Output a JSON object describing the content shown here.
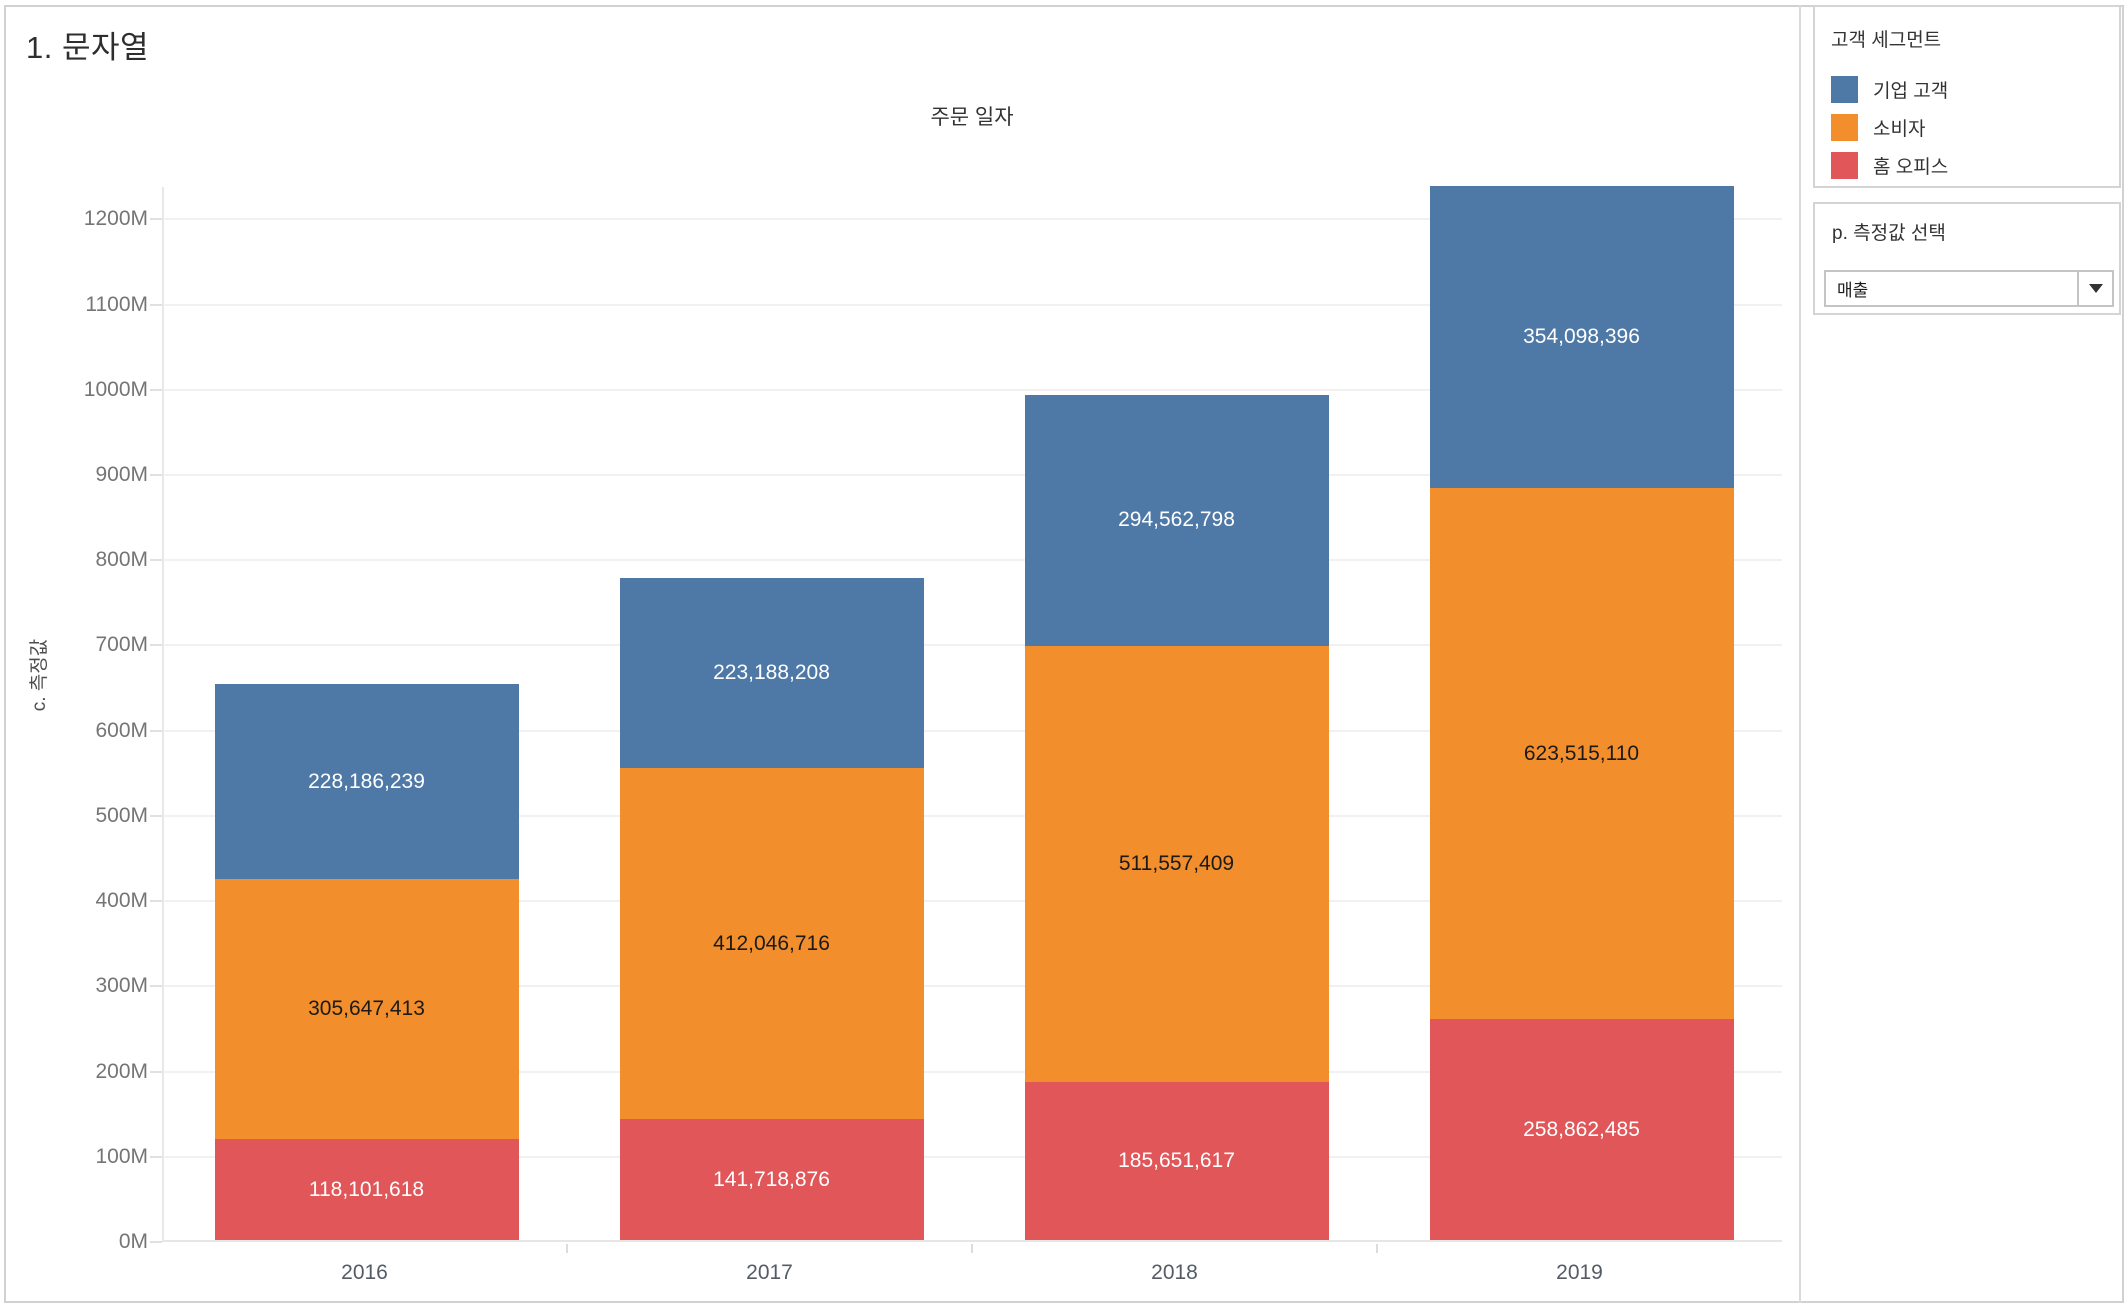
{
  "window": {
    "title": "1. 문자열"
  },
  "chart_data": {
    "type": "bar",
    "stacked": true,
    "title": "주문 일자",
    "xlabel": "",
    "ylabel": "c. 측정값",
    "categories": [
      "2016",
      "2017",
      "2018",
      "2019"
    ],
    "series": [
      {
        "name": "홈 오피스",
        "color": "#e15759",
        "label_color": "#ffffff",
        "values": [
          118101618,
          141718876,
          185651617,
          258862485
        ]
      },
      {
        "name": "소비자",
        "color": "#f28e2b",
        "label_color": "#1b1b1b",
        "values": [
          305647413,
          412046716,
          511557409,
          623515110
        ]
      },
      {
        "name": "기업 고객",
        "color": "#4e79a7",
        "label_color": "#ffffff",
        "values": [
          228186239,
          223188208,
          294562798,
          354098396
        ]
      }
    ],
    "y_ticks": [
      "0M",
      "100M",
      "200M",
      "300M",
      "400M",
      "500M",
      "600M",
      "700M",
      "800M",
      "900M",
      "1000M",
      "1100M",
      "1200M"
    ],
    "ylim": [
      0,
      1238000000
    ],
    "grid": true,
    "legend_position": "right"
  },
  "legend": {
    "title": "고객 세그먼트",
    "items": [
      {
        "label": "기업 고객",
        "color": "#4e79a7"
      },
      {
        "label": "소비자",
        "color": "#f28e2b"
      },
      {
        "label": "홈 오피스",
        "color": "#e15759"
      }
    ]
  },
  "parameter": {
    "title": "p. 측정값 선택",
    "dropdown_value": "매출"
  }
}
